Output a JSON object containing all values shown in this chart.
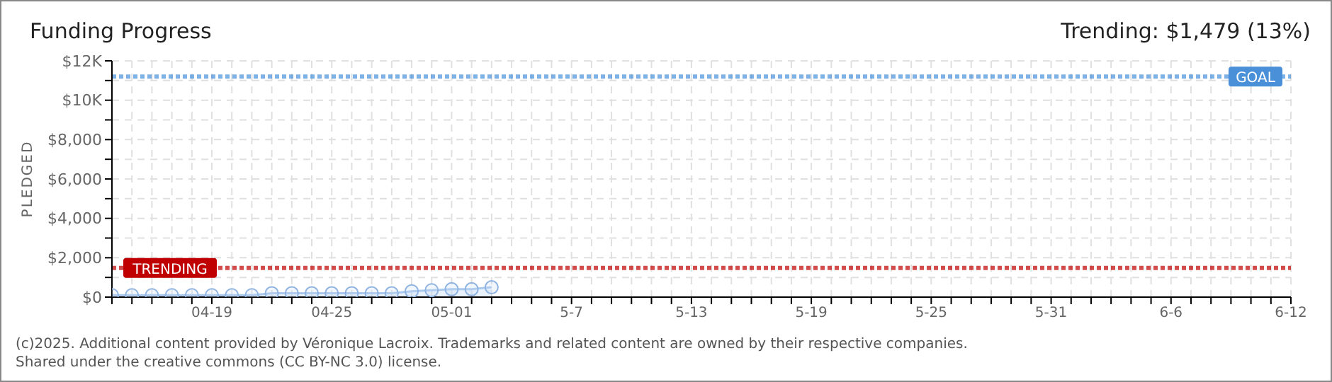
{
  "chart_data": {
    "type": "area",
    "title": "Funding Progress",
    "subtitle": "Trending: $1,479 (13%)",
    "ylabel": "PLEDGED",
    "x": [
      "2025-04-14",
      "2025-04-15",
      "2025-04-16",
      "2025-04-17",
      "2025-04-18",
      "2025-04-19",
      "2025-04-20",
      "2025-04-21",
      "2025-04-22",
      "2025-04-23",
      "2025-04-24",
      "2025-04-25",
      "2025-04-26",
      "2025-04-27",
      "2025-04-28",
      "2025-04-29",
      "2025-04-30",
      "2025-05-01",
      "2025-05-02",
      "2025-05-03"
    ],
    "series": [
      {
        "color": "#a9c9ef",
        "values": [
          100,
          100,
          100,
          100,
          100,
          100,
          100,
          100,
          200,
          200,
          200,
          200,
          200,
          200,
          200,
          300,
          350,
          400,
          400,
          500
        ]
      }
    ],
    "marker": "circle",
    "line_style": "solid",
    "grid": true,
    "xlim": [
      "2025-04-14",
      "2025-06-12"
    ],
    "xticks": [
      {
        "value": "2025-04-14",
        "label": null
      },
      {
        "value": "2025-04-15",
        "label": null
      },
      {
        "value": "2025-04-16",
        "label": null
      },
      {
        "value": "2025-04-17",
        "label": null
      },
      {
        "value": "2025-04-18",
        "label": null
      },
      {
        "value": "2025-04-19",
        "label": "04-19"
      },
      {
        "value": "2025-04-20",
        "label": null
      },
      {
        "value": "2025-04-21",
        "label": null
      },
      {
        "value": "2025-04-22",
        "label": null
      },
      {
        "value": "2025-04-23",
        "label": null
      },
      {
        "value": "2025-04-24",
        "label": null
      },
      {
        "value": "2025-04-25",
        "label": "04-25"
      },
      {
        "value": "2025-04-26",
        "label": null
      },
      {
        "value": "2025-04-27",
        "label": null
      },
      {
        "value": "2025-04-28",
        "label": null
      },
      {
        "value": "2025-04-29",
        "label": null
      },
      {
        "value": "2025-04-30",
        "label": null
      },
      {
        "value": "2025-05-01",
        "label": "05-01"
      },
      {
        "value": "2025-05-02",
        "label": null
      },
      {
        "value": "2025-05-03",
        "label": null
      },
      {
        "value": "2025-05-04",
        "label": null
      },
      {
        "value": "2025-05-05",
        "label": null
      },
      {
        "value": "2025-05-06",
        "label": null
      },
      {
        "value": "2025-05-07",
        "label": "5-7"
      },
      {
        "value": "2025-05-08",
        "label": null
      },
      {
        "value": "2025-05-09",
        "label": null
      },
      {
        "value": "2025-05-10",
        "label": null
      },
      {
        "value": "2025-05-11",
        "label": null
      },
      {
        "value": "2025-05-12",
        "label": null
      },
      {
        "value": "2025-05-13",
        "label": "5-13"
      },
      {
        "value": "2025-05-14",
        "label": null
      },
      {
        "value": "2025-05-15",
        "label": null
      },
      {
        "value": "2025-05-16",
        "label": null
      },
      {
        "value": "2025-05-17",
        "label": null
      },
      {
        "value": "2025-05-18",
        "label": null
      },
      {
        "value": "2025-05-19",
        "label": "5-19"
      },
      {
        "value": "2025-05-20",
        "label": null
      },
      {
        "value": "2025-05-21",
        "label": null
      },
      {
        "value": "2025-05-22",
        "label": null
      },
      {
        "value": "2025-05-23",
        "label": null
      },
      {
        "value": "2025-05-24",
        "label": null
      },
      {
        "value": "2025-05-25",
        "label": "5-25"
      },
      {
        "value": "2025-05-26",
        "label": null
      },
      {
        "value": "2025-05-27",
        "label": null
      },
      {
        "value": "2025-05-28",
        "label": null
      },
      {
        "value": "2025-05-29",
        "label": null
      },
      {
        "value": "2025-05-30",
        "label": null
      },
      {
        "value": "2025-05-31",
        "label": "5-31"
      },
      {
        "value": "2025-06-01",
        "label": null
      },
      {
        "value": "2025-06-02",
        "label": null
      },
      {
        "value": "2025-06-03",
        "label": null
      },
      {
        "value": "2025-06-04",
        "label": null
      },
      {
        "value": "2025-06-05",
        "label": null
      },
      {
        "value": "2025-06-06",
        "label": "6-6"
      },
      {
        "value": "2025-06-07",
        "label": null
      },
      {
        "value": "2025-06-08",
        "label": null
      },
      {
        "value": "2025-06-09",
        "label": null
      },
      {
        "value": "2025-06-10",
        "label": null
      },
      {
        "value": "2025-06-11",
        "label": null
      },
      {
        "value": "2025-06-12",
        "label": "6-12"
      }
    ],
    "ylim": [
      0,
      12000
    ],
    "yticks": [
      {
        "value": 0,
        "label": "$0"
      },
      {
        "value": 1000,
        "label": null
      },
      {
        "value": 2000,
        "label": "$2,000"
      },
      {
        "value": 3000,
        "label": null
      },
      {
        "value": 4000,
        "label": "$4,000"
      },
      {
        "value": 5000,
        "label": null
      },
      {
        "value": 6000,
        "label": "$6,000"
      },
      {
        "value": 7000,
        "label": null
      },
      {
        "value": 8000,
        "label": "$8,000"
      },
      {
        "value": 9000,
        "label": null
      },
      {
        "value": 10000,
        "label": "$10K"
      },
      {
        "value": 11000,
        "label": null
      },
      {
        "value": 12000,
        "label": "$12K"
      }
    ],
    "ref_lines": [
      {
        "axis": "y",
        "value": 11200,
        "label": "GOAL",
        "color": "#4a90d9",
        "line_style": "dotted"
      },
      {
        "axis": "y",
        "value": 1479,
        "label": "TRENDING",
        "color": "#c00000",
        "line_style": "dotted"
      }
    ],
    "annotations": [
      "(c)2025. Additional content provided by Véronique Lacroix. Trademarks and related content are owned by their respective companies.",
      "Shared under the creative commons (CC BY-NC 3.0) license."
    ]
  }
}
